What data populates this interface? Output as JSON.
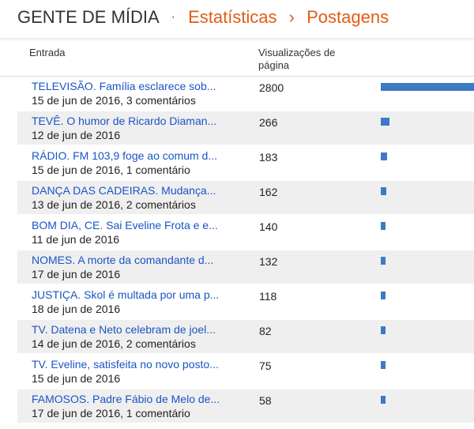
{
  "header": {
    "blog_name": "GENTE DE MÍDIA",
    "separator": "·",
    "section": "Estatísticas",
    "arrow": "›",
    "page": "Postagens"
  },
  "table": {
    "col_entry": "Entrada",
    "col_views": "Visualizações de página",
    "bar_color": "#3d7ac4",
    "bar_max_value": 2800,
    "rows": [
      {
        "title": "TELEVISÃO. Família esclarece sob...",
        "meta": "15 de jun de 2016, 3 comentários",
        "views": 2800
      },
      {
        "title": "TEVÊ. O humor de Ricardo Diaman...",
        "meta": "12 de jun de 2016",
        "views": 266
      },
      {
        "title": "RÁDIO. FM 103,9 foge ao comum d...",
        "meta": "15 de jun de 2016, 1 comentário",
        "views": 183
      },
      {
        "title": "DANÇA DAS CADEIRAS. Mudança...",
        "meta": "13 de jun de 2016, 2 comentários",
        "views": 162
      },
      {
        "title": "BOM DIA, CE. Sai Eveline Frota e e...",
        "meta": "11 de jun de 2016",
        "views": 140
      },
      {
        "title": "NOMES. A morte da comandante d...",
        "meta": "17 de jun de 2016",
        "views": 132
      },
      {
        "title": "JUSTIÇA. Skol é multada por uma p...",
        "meta": "18 de jun de 2016",
        "views": 118
      },
      {
        "title": "TV. Datena e Neto celebram de joel...",
        "meta": "14 de jun de 2016, 2 comentários",
        "views": 82
      },
      {
        "title": "TV. Eveline, satisfeita no novo posto...",
        "meta": "15 de jun de 2016",
        "views": 75
      },
      {
        "title": "FAMOSOS. Padre Fábio de Melo de...",
        "meta": "17 de jun de 2016, 1 comentário",
        "views": 58
      }
    ]
  }
}
